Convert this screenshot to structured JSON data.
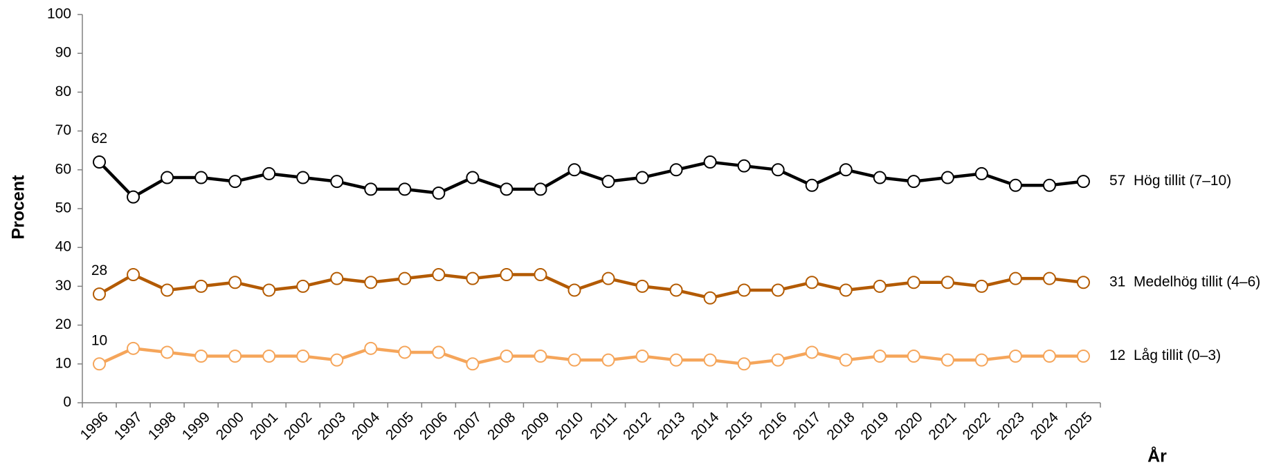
{
  "chart_data": {
    "type": "line",
    "x_label": "År",
    "y_label": "Procent",
    "categories": [
      "1996",
      "1997",
      "1998",
      "1999",
      "2000",
      "2001",
      "2002",
      "2003",
      "2004",
      "2005",
      "2006",
      "2007",
      "2008",
      "2009",
      "2010",
      "2011",
      "2012",
      "2013",
      "2014",
      "2015",
      "2016",
      "2017",
      "2018",
      "2019",
      "2020",
      "2021",
      "2022",
      "2023",
      "2024",
      "2025"
    ],
    "series": [
      {
        "name": "Hög tillit (7–10)",
        "color": "#000000",
        "values": [
          62,
          53,
          58,
          58,
          57,
          59,
          58,
          57,
          55,
          55,
          54,
          58,
          55,
          55,
          60,
          57,
          58,
          60,
          62,
          61,
          60,
          56,
          60,
          58,
          57,
          58,
          59,
          56,
          56,
          57
        ]
      },
      {
        "name": "Medelhög tillit (4–6)",
        "color": "#b35a00",
        "values": [
          28,
          33,
          29,
          30,
          31,
          29,
          30,
          32,
          31,
          32,
          33,
          32,
          33,
          33,
          29,
          32,
          30,
          29,
          27,
          29,
          29,
          31,
          29,
          30,
          31,
          31,
          30,
          32,
          32,
          31
        ]
      },
      {
        "name": "Låg tillit (0–3)",
        "color": "#f5a55a",
        "values": [
          10,
          14,
          13,
          12,
          12,
          12,
          12,
          11,
          14,
          13,
          13,
          10,
          12,
          12,
          11,
          11,
          12,
          11,
          11,
          10,
          11,
          13,
          11,
          12,
          12,
          11,
          11,
          12,
          12,
          12
        ]
      }
    ],
    "ylim": [
      0,
      100
    ],
    "yticks": [
      0,
      10,
      20,
      30,
      40,
      50,
      60,
      70,
      80,
      90,
      100
    ],
    "grid": false
  }
}
